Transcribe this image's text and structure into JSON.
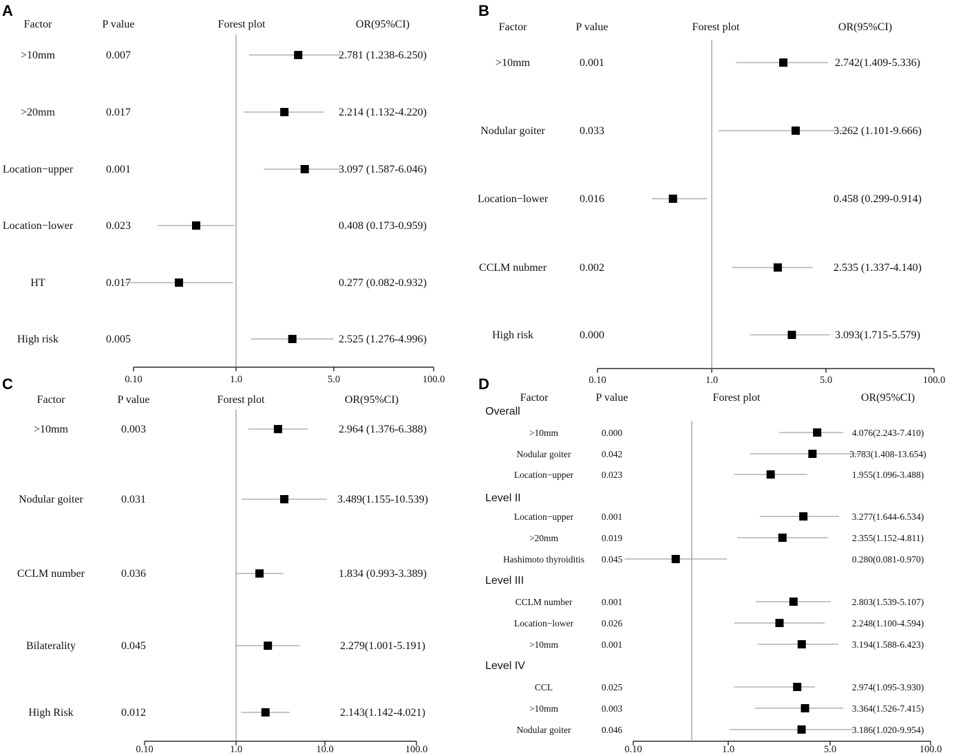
{
  "chart_data": [
    {
      "panel": "A",
      "type": "forest",
      "headers": {
        "factor": "Factor",
        "p": "P value",
        "plot": "Forest plot",
        "or": "OR(95%CI)"
      },
      "axis_ticks": [
        {
          "value": 0.1,
          "label": "0.10"
        },
        {
          "value": 1.0,
          "label": "1.0"
        },
        {
          "value": 5.0,
          "label": "5.0"
        },
        {
          "value": 100.0,
          "label": "100.0"
        }
      ],
      "reference_value": 1.0,
      "rows": [
        {
          "factor": ">10mm",
          "p": "0.007",
          "or_text": "2.781 (1.238-6.250)",
          "or": 2.781,
          "lo": 1.238,
          "hi": 6.25
        },
        {
          "factor": ">20mm",
          "p": "0.017",
          "or_text": "2.214 (1.132-4.220)",
          "or": 2.214,
          "lo": 1.132,
          "hi": 4.22
        },
        {
          "factor": "Location−upper",
          "p": "0.001",
          "or_text": "3.097 (1.587-6.046)",
          "or": 3.097,
          "lo": 1.587,
          "hi": 6.046
        },
        {
          "factor": "Location−lower",
          "p": "0.023",
          "or_text": "0.408 (0.173-0.959)",
          "or": 0.408,
          "lo": 0.173,
          "hi": 0.959
        },
        {
          "factor": "HT",
          "p": "0.017",
          "or_text": "0.277 (0.082-0.932)",
          "or": 0.277,
          "lo": 0.082,
          "hi": 0.932
        },
        {
          "factor": "High risk",
          "p": "0.005",
          "or_text": "2.525 (1.276-4.996)",
          "or": 2.525,
          "lo": 1.276,
          "hi": 4.996
        }
      ]
    },
    {
      "panel": "B",
      "type": "forest",
      "headers": {
        "factor": "Factor",
        "p": "P value",
        "plot": "Forest plot",
        "or": "OR(95%CI)"
      },
      "axis_ticks": [
        {
          "value": 0.1,
          "label": "0.10"
        },
        {
          "value": 1.0,
          "label": "1.0"
        },
        {
          "value": 5.0,
          "label": "5.0"
        },
        {
          "value": 100.0,
          "label": "100.0"
        }
      ],
      "reference_value": 1.0,
      "rows": [
        {
          "factor": ">10mm",
          "p": "0.001",
          "or_text": "2.742(1.409-5.336)",
          "or": 2.742,
          "lo": 1.409,
          "hi": 5.336
        },
        {
          "factor": "Nodular goiter",
          "p": "0.033",
          "or_text": "3.262 (1.101-9.666)",
          "or": 3.262,
          "lo": 1.101,
          "hi": 9.666
        },
        {
          "factor": "Location−lower",
          "p": "0.016",
          "or_text": "0.458 (0.299-0.914)",
          "or": 0.458,
          "lo": 0.299,
          "hi": 0.914
        },
        {
          "factor": "CCLM nubmer",
          "p": "0.002",
          "or_text": "2.535 (1.337-4.140)",
          "or": 2.535,
          "lo": 1.337,
          "hi": 4.14
        },
        {
          "factor": "High risk",
          "p": "0.000",
          "or_text": "3.093(1.715-5.579)",
          "or": 3.093,
          "lo": 1.715,
          "hi": 5.579
        }
      ]
    },
    {
      "panel": "C",
      "type": "forest",
      "headers": {
        "factor": "Factor",
        "p": "P value",
        "plot": "Forest plot",
        "or": "OR(95%CI)"
      },
      "axis_ticks": [
        {
          "value": 0.1,
          "label": "0.10"
        },
        {
          "value": 1.0,
          "label": "1.0"
        },
        {
          "value": 10.0,
          "label": "10.0"
        },
        {
          "value": 100.0,
          "label": "100.0"
        }
      ],
      "reference_value": 1.0,
      "rows": [
        {
          "factor": ">10mm",
          "p": "0.003",
          "or_text": "2.964 (1.376-6.388)",
          "or": 2.964,
          "lo": 1.376,
          "hi": 6.388
        },
        {
          "factor": "Nodular goiter",
          "p": "0.031",
          "or_text": "3.489(1.155-10.539)",
          "or": 3.489,
          "lo": 1.155,
          "hi": 10.539
        },
        {
          "factor": "CCLM number",
          "p": "0.036",
          "or_text": "1.834 (0.993-3.389)",
          "or": 1.834,
          "lo": 0.993,
          "hi": 3.389
        },
        {
          "factor": "Bilaterality",
          "p": "0.045",
          "or_text": "2.279(1.001-5.191)",
          "or": 2.279,
          "lo": 1.001,
          "hi": 5.191
        },
        {
          "factor": "High Risk",
          "p": "0.012",
          "or_text": "2.143(1.142-4.021)",
          "or": 2.143,
          "lo": 1.142,
          "hi": 4.021
        }
      ]
    },
    {
      "panel": "D",
      "type": "forest",
      "headers": {
        "factor": "Factor",
        "p": "P value",
        "plot": "Forest plot",
        "or": "OR(95%CI)"
      },
      "axis_ticks": [
        {
          "value": 0.1,
          "label": "0.10"
        },
        {
          "value": 1.0,
          "label": "1.0"
        },
        {
          "value": 5.0,
          "label": "5.0"
        },
        {
          "value": 100.0,
          "label": "100.0"
        }
      ],
      "reference_value": 0.5,
      "groups": [
        {
          "label": "Overall",
          "rows": [
            {
              "factor": ">10mm",
              "p": "0.000",
              "or_text": "4.076(2.243-7.410)",
              "or": 4.076,
              "lo": 2.243,
              "hi": 7.41
            },
            {
              "factor": "Nodular goiter",
              "p": "0.042",
              "or_text": "3.783(1.408-13.654)",
              "or": 3.783,
              "lo": 1.408,
              "hi": 13.654
            },
            {
              "factor": "Location−upper",
              "p": "0.023",
              "or_text": "1.955(1.096-3.488)",
              "or": 1.955,
              "lo": 1.096,
              "hi": 3.488
            }
          ]
        },
        {
          "label": "Level II",
          "rows": [
            {
              "factor": "Location−upper",
              "p": "0.001",
              "or_text": "3.277(1.644-6.534)",
              "or": 3.277,
              "lo": 1.644,
              "hi": 6.534
            },
            {
              "factor": ">20mm",
              "p": "0.019",
              "or_text": "2.355(1.152-4.811)",
              "or": 2.355,
              "lo": 1.152,
              "hi": 4.811
            },
            {
              "factor": "Hashimoto thyroiditis",
              "p": "0.045",
              "or_text": "0.280(0.081-0.970)",
              "or": 0.28,
              "lo": 0.081,
              "hi": 0.97
            }
          ]
        },
        {
          "label": "Level III",
          "rows": [
            {
              "factor": "CCLM number",
              "p": "0.001",
              "or_text": "2.803(1.539-5.107)",
              "or": 2.803,
              "lo": 1.539,
              "hi": 5.107
            },
            {
              "factor": "Location−lower",
              "p": "0.026",
              "or_text": "2.248(1.100-4.594)",
              "or": 2.248,
              "lo": 1.1,
              "hi": 4.594
            },
            {
              "factor": ">10mm",
              "p": "0.001",
              "or_text": "3.194(1.588-6.423)",
              "or": 3.194,
              "lo": 1.588,
              "hi": 6.423
            }
          ]
        },
        {
          "label": "Level IV",
          "rows": [
            {
              "factor": "CCL",
              "p": "0.025",
              "or_text": "2.974(1.095-3.930)",
              "or": 2.974,
              "lo": 1.095,
              "hi": 3.93
            },
            {
              "factor": ">10mm",
              "p": "0.003",
              "or_text": "3.364(1.526-7.415)",
              "or": 3.364,
              "lo": 1.526,
              "hi": 7.415
            },
            {
              "factor": "Nodular goiter",
              "p": "0.046",
              "or_text": "3.186(1.020-9.954)",
              "or": 3.186,
              "lo": 1.02,
              "hi": 9.954
            }
          ]
        }
      ]
    }
  ]
}
